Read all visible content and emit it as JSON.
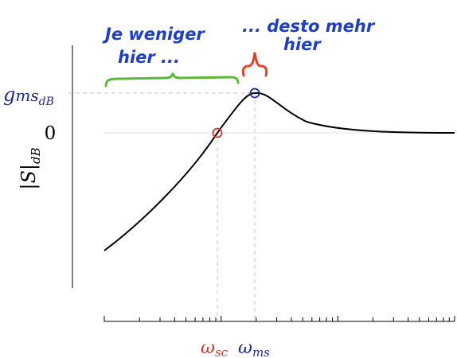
{
  "chart_data": {
    "type": "line",
    "x_scale": "log",
    "ylabel": {
      "main": "|S|",
      "sub": "dB"
    },
    "y_ticks": [
      {
        "label": "0",
        "level": "zero"
      }
    ],
    "markers": [
      {
        "id": "omega_sc",
        "symbol": "ω",
        "sub": "sc",
        "color": "#c0392b"
      },
      {
        "id": "omega_ms",
        "symbol": "ω",
        "sub": "ms",
        "color": "#1f2a8a"
      }
    ],
    "peak_label": {
      "symbol": "g",
      "sub1": "ms",
      "sub2": "dB",
      "color": "#1f2a8a"
    },
    "curve_color": "#000000",
    "grid": false
  },
  "annotations": {
    "left_note": {
      "line1": "Je weniger",
      "line2": "hier ...",
      "color": "#1f3fbf"
    },
    "right_note": {
      "line1": "... desto mehr",
      "line2": "hier",
      "color": "#1f3fbf"
    },
    "left_brace_color": "#5cb83c",
    "right_brace_color": "#e0432a"
  }
}
